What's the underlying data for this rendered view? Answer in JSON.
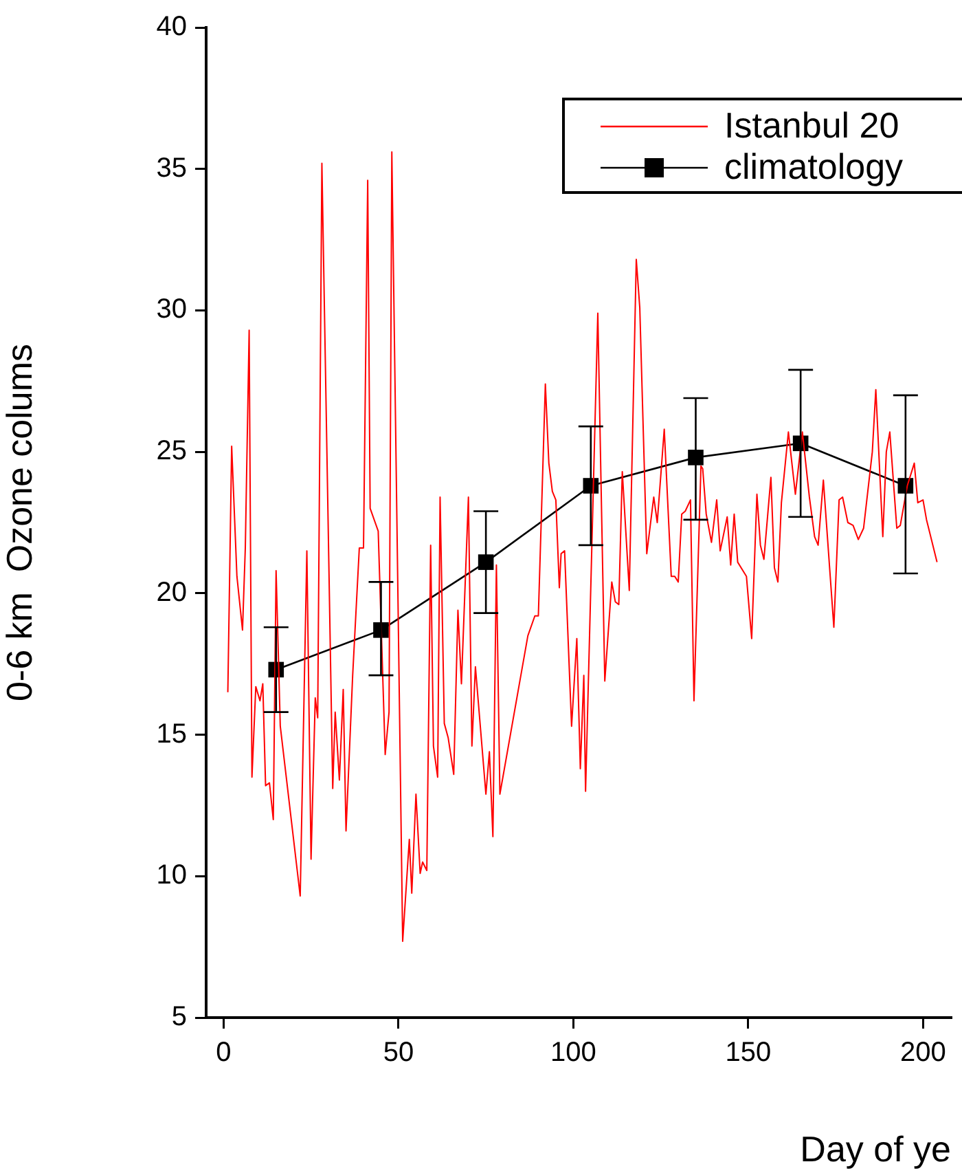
{
  "chart_data": {
    "type": "line",
    "xlabel": "Day of ye",
    "ylabel": "0-6 km  Ozone colums",
    "xlim": [
      -5,
      208
    ],
    "xticks": [
      0,
      50,
      100,
      150,
      200
    ],
    "ylim": [
      5,
      40
    ],
    "yticks": [
      5,
      10,
      15,
      20,
      25,
      30,
      35,
      40
    ],
    "legend": "top right",
    "series": [
      {
        "name": "Istanbul 20",
        "color": "#ff0000",
        "marker": "none",
        "x": [
          1.2,
          2.3,
          3.8,
          5.4,
          6.2,
          7.3,
          8.1,
          9.2,
          10.4,
          11.2,
          12,
          13.1,
          14.2,
          15,
          16.2,
          21.9,
          23.8,
          25,
          26.2,
          26.9,
          28.1,
          31.2,
          31.9,
          33.1,
          34.2,
          35,
          36.9,
          38.8,
          40,
          41.2,
          41.9,
          44.2,
          46.2,
          47.3,
          48.1,
          51.2,
          53.1,
          53.8,
          55,
          56.2,
          56.9,
          58.1,
          59.2,
          60,
          61.2,
          61.9,
          63.1,
          64.2,
          65.8,
          67,
          68,
          70,
          71,
          72,
          75,
          76,
          77,
          78,
          79,
          87,
          89,
          90,
          92,
          93,
          94,
          95,
          96,
          96.5,
          97.5,
          99.5,
          101,
          102,
          103,
          103.5,
          107,
          109,
          111,
          112,
          113,
          114,
          116,
          118,
          119,
          121,
          123,
          124,
          126,
          128,
          129,
          130,
          131,
          132,
          133.5,
          134.5,
          136.5,
          137,
          138,
          139.5,
          141,
          142,
          144,
          145,
          146,
          147,
          148.5,
          149.5,
          151,
          152.5,
          153.5,
          154.5,
          156.5,
          157.5,
          158.5,
          159.5,
          161.5,
          163.5,
          165.5,
          167.5,
          169,
          170,
          171.5,
          174.5,
          176,
          177,
          178.5,
          180,
          181.5,
          183,
          185.5,
          186.5,
          188.5,
          189.5,
          190.5,
          192.5,
          193.5,
          195.5,
          197.5,
          198.5,
          200,
          201,
          204
        ],
        "values": [
          16.5,
          25.2,
          20.6,
          18.7,
          21.6,
          29.3,
          13.5,
          16.7,
          16.2,
          16.8,
          13.2,
          13.3,
          12.0,
          20.8,
          15.3,
          9.3,
          21.5,
          10.6,
          16.3,
          15.6,
          35.2,
          13.1,
          15.8,
          13.4,
          16.6,
          11.6,
          17.1,
          21.6,
          21.6,
          34.6,
          23.0,
          22.2,
          14.3,
          15.8,
          35.6,
          7.7,
          11.3,
          9.4,
          12.9,
          10.1,
          10.5,
          10.2,
          21.7,
          14.6,
          13.5,
          23.4,
          15.4,
          14.9,
          13.6,
          19.4,
          16.8,
          23.4,
          14.6,
          17.4,
          12.9,
          14.4,
          11.4,
          21.0,
          12.9,
          18.5,
          19.2,
          19.2,
          27.4,
          24.6,
          23.6,
          23.3,
          20.2,
          21.4,
          21.5,
          15.3,
          18.4,
          13.8,
          17.1,
          13.0,
          29.9,
          16.9,
          20.4,
          19.7,
          19.6,
          24.3,
          20.1,
          31.8,
          30.1,
          21.4,
          23.4,
          22.5,
          25.8,
          20.6,
          20.6,
          20.4,
          22.8,
          22.9,
          23.3,
          16.2,
          24.5,
          24.4,
          22.8,
          21.8,
          23.3,
          21.5,
          22.7,
          21.0,
          22.8,
          21.1,
          20.8,
          20.6,
          18.4,
          23.5,
          21.7,
          21.2,
          24.1,
          20.9,
          20.4,
          23.2,
          25.7,
          23.5,
          25.7,
          23.4,
          22.0,
          21.7,
          24.0,
          18.8,
          23.3,
          23.4,
          22.5,
          22.4,
          21.9,
          22.3,
          25.0,
          27.2,
          22.0,
          25.0,
          25.7,
          22.3,
          22.4,
          23.8,
          24.6,
          23.2,
          23.3,
          22.6,
          21.1
        ]
      },
      {
        "name": "climatology",
        "color": "#000000",
        "marker": "square",
        "x": [
          15,
          45,
          75,
          105,
          135,
          165,
          195
        ],
        "values": [
          17.3,
          18.7,
          21.1,
          23.8,
          24.8,
          25.3,
          23.8
        ],
        "errors": [
          [
            15.8,
            18.8
          ],
          [
            17.1,
            20.4
          ],
          [
            19.3,
            22.9
          ],
          [
            21.7,
            25.9
          ],
          [
            22.6,
            26.9
          ],
          [
            22.7,
            27.9
          ],
          [
            20.7,
            27.0
          ]
        ]
      }
    ]
  }
}
